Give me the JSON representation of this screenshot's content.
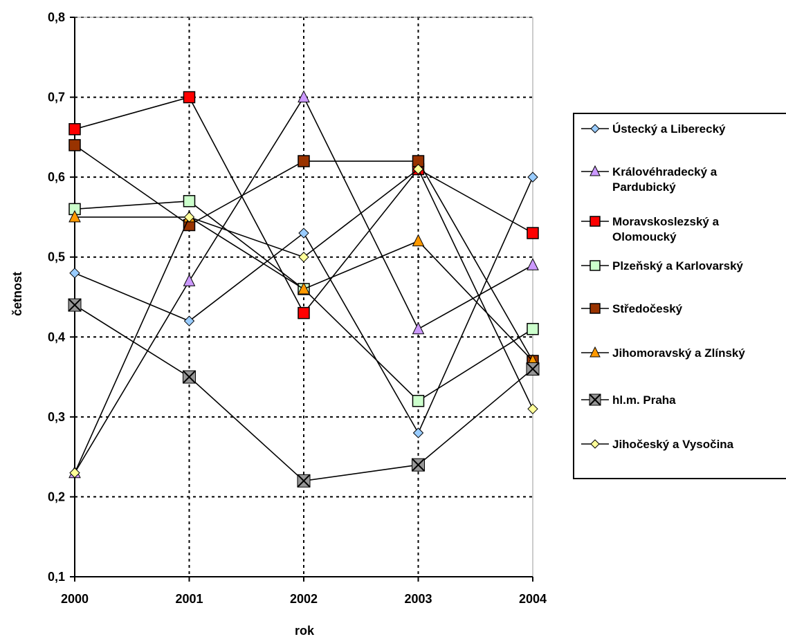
{
  "chart_data": {
    "type": "line",
    "title": "",
    "xlabel": "rok",
    "ylabel": "četnost",
    "x": [
      "2000",
      "2001",
      "2002",
      "2003",
      "2004"
    ],
    "ylim": [
      0.1,
      0.8
    ],
    "yticks": [
      "0,1",
      "0,2",
      "0,3",
      "0,4",
      "0,5",
      "0,6",
      "0,7",
      "0,8"
    ],
    "grid": true,
    "legend_position": "right",
    "series": [
      {
        "name": "Ústecký a Liberecký",
        "marker": "diamond",
        "color": "#99ccff",
        "values": [
          0.48,
          0.42,
          0.53,
          0.28,
          0.6
        ]
      },
      {
        "name": "Královéhradecký a Pardubický",
        "marker": "triangle",
        "color": "#cc99ff",
        "values": [
          0.23,
          0.47,
          0.7,
          0.41,
          0.49
        ]
      },
      {
        "name": "Moravskoslezský a Olomoucký",
        "marker": "square",
        "color": "#ff0000",
        "values": [
          0.66,
          0.7,
          0.43,
          0.61,
          0.53
        ]
      },
      {
        "name": "Plzeňský a Karlovarský",
        "marker": "square",
        "color": "#ccffcc",
        "values": [
          0.56,
          0.57,
          0.46,
          0.32,
          0.41
        ]
      },
      {
        "name": "Středočeský",
        "marker": "square",
        "color": "#993300",
        "values": [
          0.64,
          0.54,
          0.62,
          0.62,
          0.37
        ]
      },
      {
        "name": "Jihomoravský a Zlínský",
        "marker": "triangle",
        "color": "#ff9900",
        "values": [
          0.55,
          0.55,
          0.46,
          0.52,
          0.37
        ]
      },
      {
        "name": "hl.m. Praha",
        "marker": "x-square",
        "color": "#969696",
        "values": [
          0.44,
          0.35,
          0.22,
          0.24,
          0.36
        ]
      },
      {
        "name": "Jihočeský a Vysočina",
        "marker": "diamond",
        "color": "#ffff99",
        "values": [
          0.23,
          0.55,
          0.5,
          0.61,
          0.31
        ]
      }
    ]
  }
}
